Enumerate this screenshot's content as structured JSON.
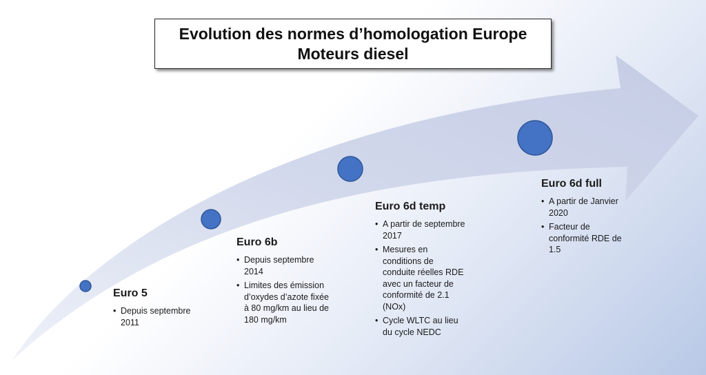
{
  "title": {
    "line1": "Evolution des normes d’homologation Europe",
    "line2": "Moteurs diesel"
  },
  "colors": {
    "arrow_fill": "#c9d0e6",
    "arrow_edge": "#b9c2df",
    "dot_fill": "#4472c4",
    "dot_stroke": "#2f5597"
  },
  "milestones": [
    {
      "name": "Euro 5",
      "bullets": [
        "Depuis septembre 2011"
      ]
    },
    {
      "name": "Euro 6b",
      "bullets": [
        "Depuis septembre 2014",
        "Limites des émission d’oxydes d’azote fixée à 80 mg/km au lieu de 180 mg/km"
      ]
    },
    {
      "name": "Euro 6d temp",
      "bullets": [
        "A partir de septembre 2017",
        "Mesures en conditions de conduite réelles RDE avec un facteur de conformité de 2.1 (NOx)",
        "Cycle WLTC au lieu du cycle NEDC"
      ]
    },
    {
      "name": "Euro 6d full",
      "bullets": [
        "A partir de Janvier 2020",
        "Facteur de conformité RDE de 1.5"
      ]
    }
  ]
}
